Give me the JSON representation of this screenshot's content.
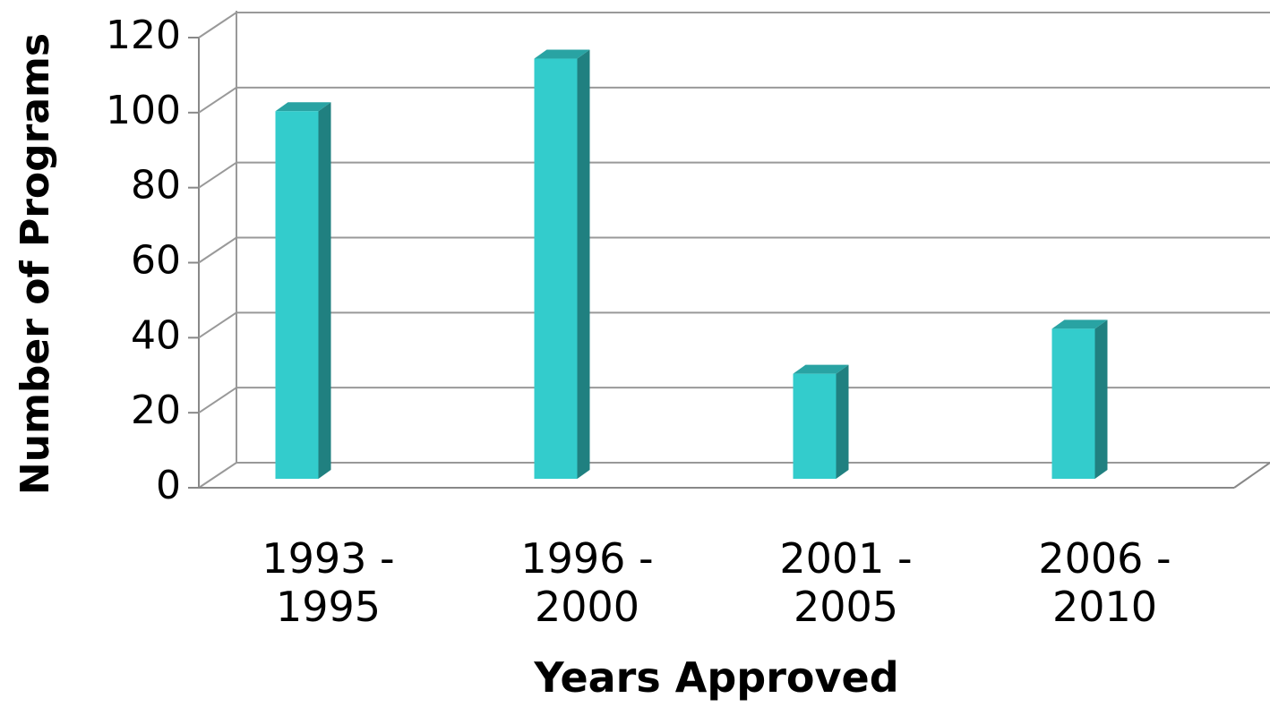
{
  "chart_data": {
    "type": "bar",
    "x_label": "Years Approved",
    "y_label": "Number of Programs",
    "categories": [
      "1993 - 1995",
      "1996 - 2000",
      "2001 - 2005",
      "2006 - 2010"
    ],
    "values": [
      98,
      112,
      28,
      40
    ],
    "color": "#33cccc",
    "ylim": [
      0,
      120
    ],
    "yticks": [
      0,
      20,
      40,
      60,
      80,
      100,
      120
    ],
    "grid": true
  }
}
